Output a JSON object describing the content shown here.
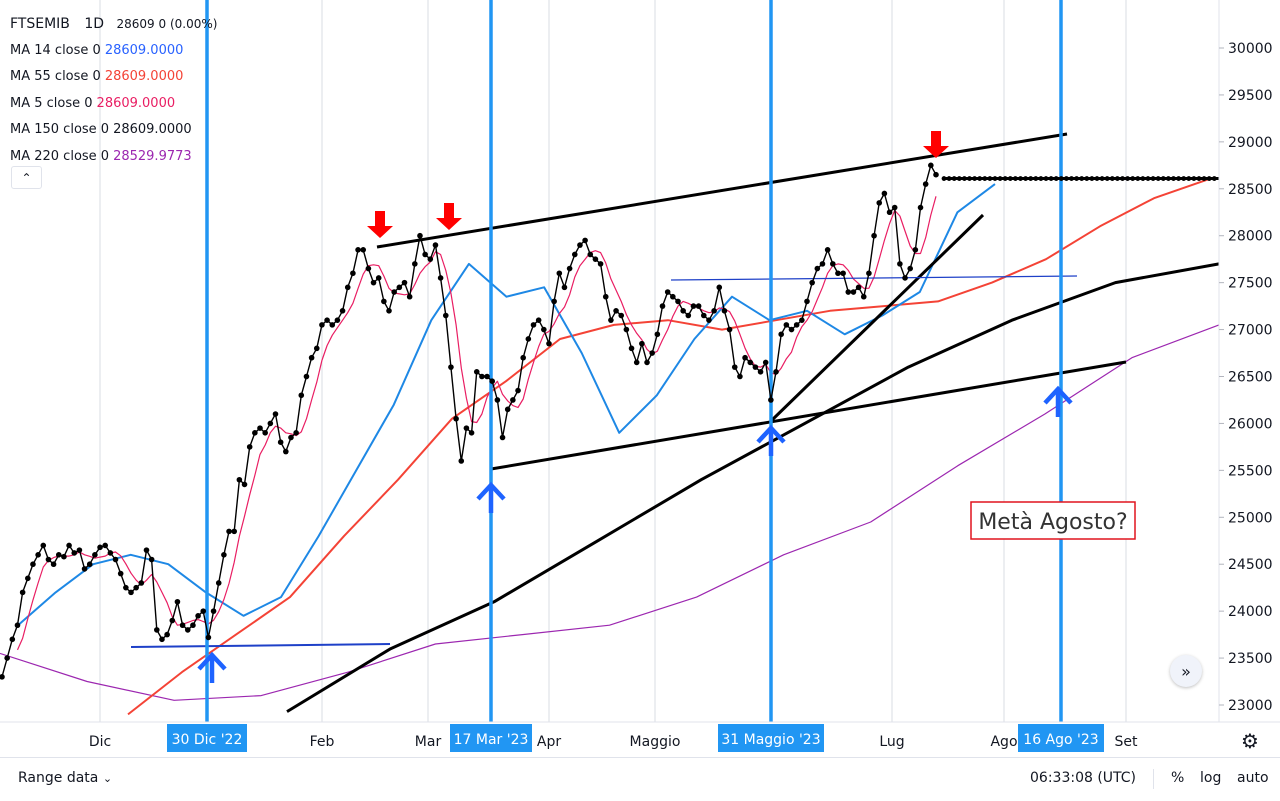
{
  "legend": {
    "symbol": "FTSEMIB",
    "interval": "1D",
    "quote": "28609 0 (0.00%)",
    "ma": [
      {
        "label": "MA 14 close 0",
        "value": "28609.0000",
        "color": "#2962ff"
      },
      {
        "label": "MA 55 close 0",
        "value": "28609.0000",
        "color": "#f44336"
      },
      {
        "label": "MA 5 close 0",
        "value": "28609.0000",
        "color": "#e91e63"
      },
      {
        "label": "MA 150 close 0",
        "value": "28609.0000",
        "color": "#131722"
      },
      {
        "label": "MA 220 close 0",
        "value": "28529.9773",
        "color": "#9c27b0"
      }
    ],
    "collapse_icon": "chevron-up-icon"
  },
  "chart_data": {
    "type": "line",
    "y_range": [
      22880,
      30330
    ],
    "y_ticks": [
      "30000",
      "29500",
      "29000",
      "28500",
      "28000",
      "27500",
      "27000",
      "26500",
      "26000",
      "25500",
      "25000",
      "24500",
      "24000",
      "23500",
      "23000"
    ],
    "x_ticks": [
      "Dic",
      "Feb",
      "Mar",
      "Apr",
      "Maggio",
      "Lug",
      "Ago",
      "Set"
    ],
    "highlighted_dates": [
      "30 Dic '22",
      "17 Mar '23",
      "31 Maggio '23",
      "16 Ago '23"
    ],
    "annotation_box": "Metà Agosto?",
    "colors": {
      "price": "#000000",
      "ma14": "#1e88e5",
      "ma55": "#f44336",
      "ma5": "#e91e63",
      "ma150": "#000000",
      "ma220": "#9c27b0",
      "vertical_markers": "#2196f3",
      "label_background": "#2196f3",
      "down_arrows": "#ff0000",
      "up_arrows": "#1e63ff",
      "support_lines": "#1e40c8"
    },
    "series": [
      {
        "name": "FTSEMIB",
        "values": [
          23300,
          23500,
          23700,
          23850,
          24200,
          24350,
          24500,
          24600,
          24700,
          24550,
          24500,
          24600,
          24580,
          24700,
          24620,
          24650,
          24450,
          24500,
          24600,
          24680,
          24700,
          24620,
          24550,
          24400,
          24250,
          24200,
          24250,
          24300,
          24650,
          24550,
          23800,
          23700,
          23750,
          23900,
          24100,
          23850,
          23800,
          23850,
          23950,
          24000,
          23720,
          24000,
          24300,
          24600,
          24850,
          24850,
          25400,
          25350,
          25750,
          25900,
          25950,
          25900,
          26000,
          26100,
          25800,
          25700,
          25850,
          25900,
          26300,
          26500,
          26700,
          26800,
          27050,
          27100,
          27050,
          27100,
          27200,
          27450,
          27600,
          27850,
          27850,
          27650,
          27500,
          27550,
          27300,
          27200,
          27400,
          27450,
          27500,
          27350,
          27700,
          28000,
          27800,
          27750,
          27900,
          27550,
          27150,
          26600,
          26050,
          25600,
          25950,
          25900,
          26550,
          26500,
          26500,
          26450,
          26250,
          25850,
          26150,
          26250,
          26350,
          26700,
          26900,
          27050,
          27100,
          27000,
          26850,
          27300,
          27600,
          27450,
          27650,
          27800,
          27900,
          27950,
          27800,
          27750,
          27700,
          27350,
          27100,
          27200,
          27150,
          27000,
          26800,
          26650,
          26850,
          26650,
          26750,
          26950,
          27250,
          27400,
          27350,
          27300,
          27200,
          27150,
          27250,
          27250,
          27150,
          27100,
          27200,
          27450,
          27200,
          27000,
          26600,
          26500,
          26700,
          26650,
          26600,
          26550,
          26650,
          26250,
          26550,
          26950,
          27050,
          27000,
          27050,
          27100,
          27300,
          27500,
          27650,
          27700,
          27850,
          27700,
          27600,
          27600,
          27400,
          27400,
          27450,
          27350,
          27600,
          28000,
          28350,
          28450,
          28250,
          28300,
          27700,
          27550,
          27650,
          27850,
          28300,
          28550,
          28750,
          28650
        ]
      },
      {
        "name": "MA 14",
        "values": [
          23850,
          24200,
          24500,
          24600,
          24500,
          24200,
          23950,
          24150,
          24800,
          25500,
          26200,
          27100,
          27700,
          27350,
          27450,
          26750,
          25900,
          26300,
          26900,
          27350,
          27100,
          27200,
          26950,
          27150,
          27400,
          28250,
          28550
        ]
      },
      {
        "name": "MA 55",
        "values": [
          22900,
          23350,
          23750,
          24150,
          24800,
          25400,
          26050,
          26450,
          26900,
          27050,
          27100,
          27000,
          27100,
          27200,
          27250,
          27300,
          27500,
          27750,
          28100,
          28400,
          28600
        ]
      },
      {
        "name": "MA 150",
        "values": [
          22930,
          23600,
          24100,
          24750,
          25400,
          26000,
          26600,
          27100,
          27500,
          27700
        ]
      },
      {
        "name": "MA 220",
        "values": [
          23550,
          23250,
          23050,
          23100,
          23350,
          23650,
          23750,
          23850,
          24150,
          24600,
          24950,
          25550,
          26100,
          26700,
          27050
        ]
      }
    ]
  },
  "bottom_bar": {
    "range_label": "Range data",
    "range_icon": "chevron-down-icon",
    "time": "06:33:08 (UTC)",
    "percent": "%",
    "log": "log",
    "auto": "auto"
  },
  "icons": {
    "settings": "gear-icon",
    "scroll_right": "double-chevron-right-icon"
  }
}
